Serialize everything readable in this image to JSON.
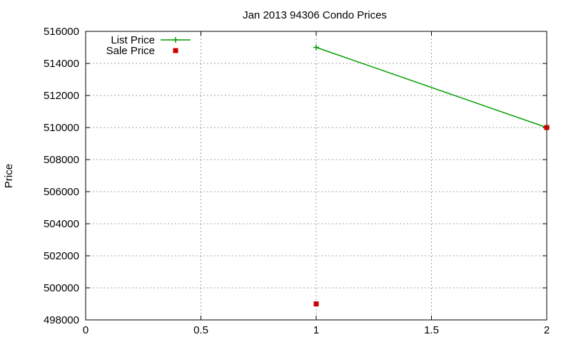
{
  "chart_data": {
    "type": "line",
    "title": "Jan 2013 94306 Condo Prices",
    "xlabel": "",
    "ylabel": "Price",
    "xlim": [
      0,
      2
    ],
    "ylim": [
      498000,
      516000
    ],
    "xticks": [
      0,
      0.5,
      1,
      1.5,
      2
    ],
    "xtick_labels": [
      "0",
      "0.5",
      "1",
      "1.5",
      "2"
    ],
    "yticks": [
      498000,
      500000,
      502000,
      504000,
      506000,
      508000,
      510000,
      512000,
      514000,
      516000
    ],
    "ytick_labels": [
      "498000",
      "500000",
      "502000",
      "504000",
      "506000",
      "508000",
      "510000",
      "512000",
      "514000",
      "516000"
    ],
    "grid": true,
    "legend_position": "top-left",
    "series": [
      {
        "name": "List Price",
        "style": "line-plus",
        "color": "#009e00",
        "x": [
          1,
          2
        ],
        "y": [
          515000,
          510000
        ]
      },
      {
        "name": "Sale Price",
        "style": "square-points",
        "color": "#cc0000",
        "x": [
          1,
          2
        ],
        "y": [
          499000,
          510000
        ]
      }
    ]
  }
}
